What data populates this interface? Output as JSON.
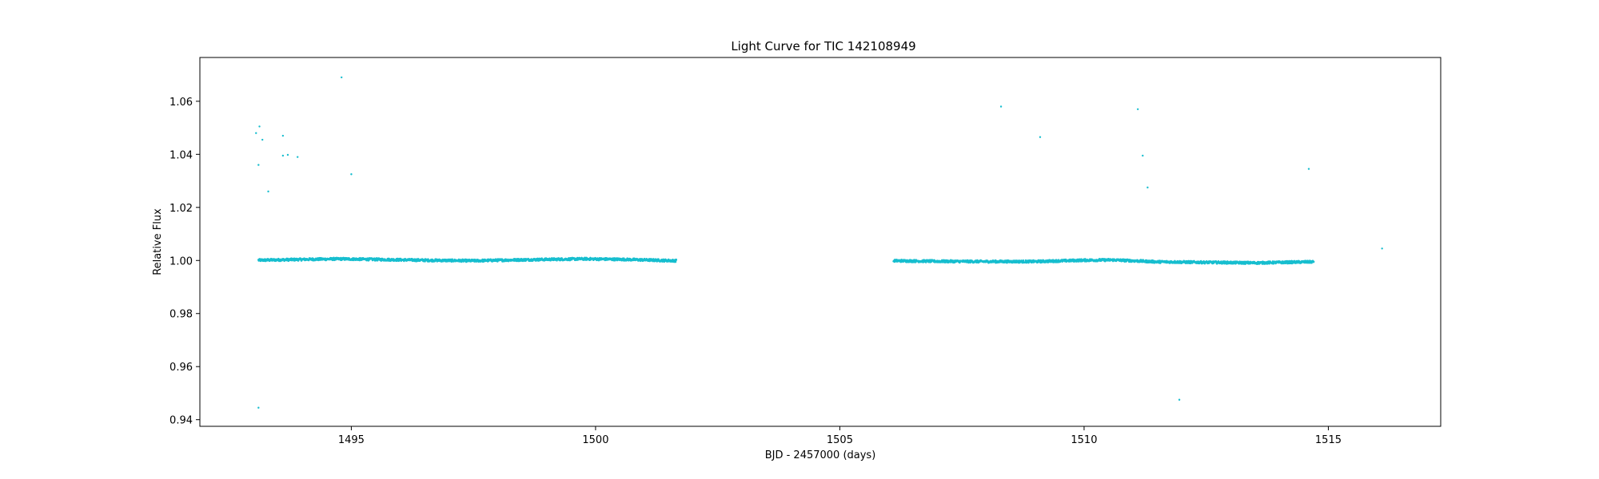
{
  "chart_data": {
    "type": "scatter",
    "title": "Light Curve for TIC 142108949",
    "xlabel": "BJD - 2457000 (days)",
    "ylabel": "Relative Flux",
    "xlim": [
      1491.9,
      1517.3
    ],
    "ylim": [
      0.9375,
      1.0765
    ],
    "xticks": [
      1495,
      1500,
      1505,
      1510,
      1515
    ],
    "yticks": [
      0.94,
      0.96,
      0.98,
      1.0,
      1.02,
      1.04,
      1.06
    ],
    "xtick_labels": [
      "1495",
      "1500",
      "1505",
      "1510",
      "1515"
    ],
    "ytick_labels": [
      "0.94",
      "0.96",
      "0.98",
      "1.00",
      "1.02",
      "1.04",
      "1.06"
    ],
    "grid": false,
    "point_color": "#17becf",
    "segments": [
      {
        "x_start": 1493.1,
        "x_end": 1501.65,
        "trend": [
          [
            1493.1,
            1.0001
          ],
          [
            1494.0,
            1.0004
          ],
          [
            1494.8,
            1.0006
          ],
          [
            1495.5,
            1.0004
          ],
          [
            1496.5,
            1.0001
          ],
          [
            1497.5,
            0.9999
          ],
          [
            1498.3,
            1.0002
          ],
          [
            1499.0,
            1.0004
          ],
          [
            1499.8,
            1.0006
          ],
          [
            1500.6,
            1.0004
          ],
          [
            1501.65,
            0.9999
          ]
        ]
      },
      {
        "x_start": 1506.1,
        "x_end": 1514.7,
        "trend": [
          [
            1506.1,
            0.9999
          ],
          [
            1507.0,
            0.9997
          ],
          [
            1508.0,
            0.9996
          ],
          [
            1509.0,
            0.9996
          ],
          [
            1510.0,
            1.0001
          ],
          [
            1510.6,
            1.0002
          ],
          [
            1511.5,
            0.9995
          ],
          [
            1512.5,
            0.9993
          ],
          [
            1513.5,
            0.9991
          ],
          [
            1514.7,
            0.9995
          ]
        ]
      }
    ],
    "outliers": [
      {
        "x": 1493.05,
        "y": 1.048
      },
      {
        "x": 1493.12,
        "y": 1.0505
      },
      {
        "x": 1493.18,
        "y": 1.0455
      },
      {
        "x": 1493.1,
        "y": 1.036
      },
      {
        "x": 1493.3,
        "y": 1.026
      },
      {
        "x": 1493.6,
        "y": 1.047
      },
      {
        "x": 1493.6,
        "y": 1.0395
      },
      {
        "x": 1493.7,
        "y": 1.0398
      },
      {
        "x": 1493.9,
        "y": 1.039
      },
      {
        "x": 1493.1,
        "y": 0.9445
      },
      {
        "x": 1494.8,
        "y": 1.069
      },
      {
        "x": 1495.0,
        "y": 1.0325
      },
      {
        "x": 1508.3,
        "y": 1.058
      },
      {
        "x": 1509.1,
        "y": 1.0465
      },
      {
        "x": 1511.1,
        "y": 1.057
      },
      {
        "x": 1511.2,
        "y": 1.0395
      },
      {
        "x": 1511.3,
        "y": 1.0275
      },
      {
        "x": 1511.95,
        "y": 0.9475
      },
      {
        "x": 1514.6,
        "y": 1.0345
      },
      {
        "x": 1516.1,
        "y": 1.0045
      }
    ]
  }
}
